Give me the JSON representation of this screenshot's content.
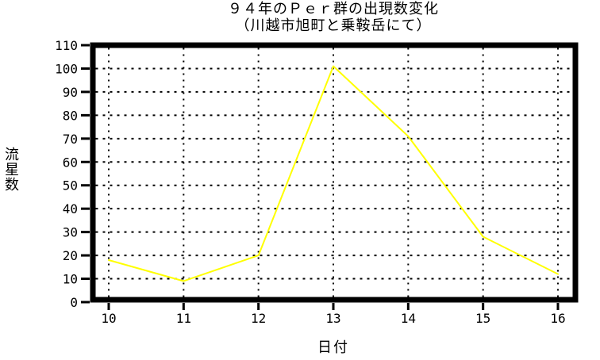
{
  "page": {
    "title": "９４年のＰｅｒ群の出現数変化",
    "subtitle": "（川越市旭町と乗鞍岳にて）"
  },
  "chart_data": {
    "type": "line",
    "title": "９４年のＰｅｒ群の出現数変化",
    "subtitle": "（川越市旭町と乗鞍岳にて）",
    "xlabel": "日付",
    "ylabel": "流星数",
    "x": [
      10,
      11,
      12,
      13,
      14,
      15,
      16
    ],
    "values": [
      18,
      9,
      20,
      101,
      71,
      28,
      12
    ],
    "xlim": [
      10,
      16
    ],
    "ylim": [
      0,
      110
    ],
    "ytick_step": 10,
    "grid": "dotted",
    "legend": "none",
    "line_color": "#ffff00",
    "axis_color": "#000000",
    "background_color": "#ffffff"
  }
}
